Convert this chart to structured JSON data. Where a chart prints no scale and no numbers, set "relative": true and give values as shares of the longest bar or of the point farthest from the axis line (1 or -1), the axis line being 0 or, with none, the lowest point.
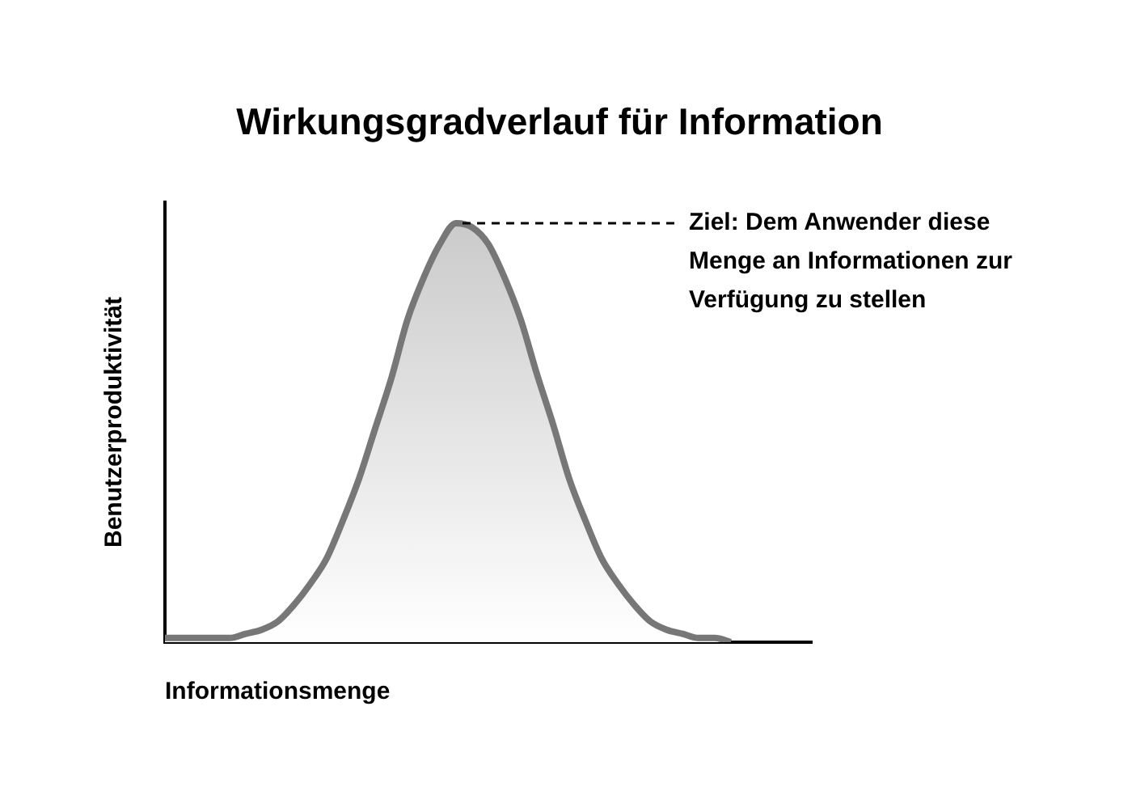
{
  "chart_data": {
    "type": "area",
    "title": "Wirkungsgradverlauf für Information",
    "xlabel": "Informationsmenge",
    "ylabel": "Benutzerproduktivität",
    "relative": true,
    "categories": [
      null,
      null,
      null,
      null,
      null,
      null,
      null,
      null,
      null,
      null,
      null,
      null,
      null,
      null,
      null,
      null,
      null,
      null,
      null,
      null,
      null,
      null,
      null,
      null,
      null,
      null,
      null,
      null,
      null,
      null,
      null,
      null,
      null,
      null,
      null,
      null,
      null,
      null,
      null,
      null,
      null
    ],
    "series": [
      {
        "color": "#777777",
        "values": [
          0.01,
          0.01,
          0.01,
          0.01,
          0.01,
          0.02,
          0.03,
          0.05,
          0.09,
          0.14,
          0.2,
          0.29,
          0.39,
          0.51,
          0.63,
          0.77,
          0.87,
          0.95,
          1,
          0.99,
          0.95,
          0.87,
          0.77,
          0.64,
          0.52,
          0.39,
          0.29,
          0.2,
          0.14,
          0.09,
          0.05,
          0.03,
          0.02,
          0.01,
          0.01,
          0,
          null,
          null,
          null,
          null,
          null
        ]
      }
    ],
    "annotations": [
      "Ziel: Dem Anwender diese Menge an Informationen zur Verfügung zu stellen"
    ],
    "grid": false,
    "legend": false
  }
}
